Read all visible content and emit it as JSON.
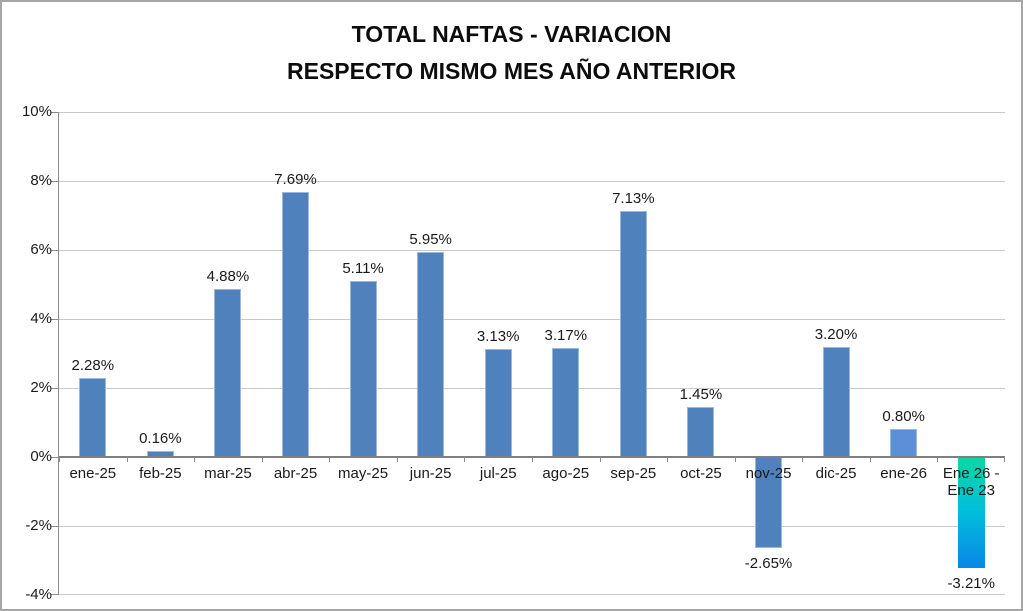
{
  "title": {
    "line1": "TOTAL NAFTAS - VARIACION",
    "line2": "RESPECTO MISMO MES AÑO ANTERIOR"
  },
  "chart_data": {
    "type": "bar",
    "title": "TOTAL NAFTAS - VARIACION RESPECTO MISMO MES AÑO ANTERIOR",
    "categories": [
      "ene-25",
      "feb-25",
      "mar-25",
      "abr-25",
      "may-25",
      "jun-25",
      "jul-25",
      "ago-25",
      "sep-25",
      "oct-25",
      "nov-25",
      "dic-25",
      "ene-26",
      "Ene 26 - Ene 23"
    ],
    "values": [
      2.28,
      0.16,
      4.88,
      7.69,
      5.11,
      5.95,
      3.13,
      3.17,
      7.13,
      1.45,
      -2.65,
      3.2,
      0.8,
      -3.21
    ],
    "data_labels": [
      "2.28%",
      "0.16%",
      "4.88%",
      "7.69%",
      "5.11%",
      "5.95%",
      "3.13%",
      "3.17%",
      "7.13%",
      "1.45%",
      "-2.65%",
      "3.20%",
      "0.80%",
      "-3.21%"
    ],
    "bar_styles": [
      "bar",
      "bar",
      "bar",
      "bar",
      "bar",
      "bar",
      "bar",
      "bar",
      "bar",
      "bar",
      "bar",
      "bar",
      "bar_light",
      "gradient"
    ],
    "ylim": [
      -4,
      10
    ],
    "ytick_values": [
      10,
      8,
      6,
      4,
      2,
      0,
      -2,
      -4
    ],
    "ytick_labels": [
      "10%",
      "8%",
      "6%",
      "4%",
      "2%",
      "0%",
      "-2%",
      "-4%"
    ],
    "grid": true,
    "legend": "none",
    "xlabel": "",
    "ylabel": "",
    "colors": {
      "bar": "#4F81BD",
      "bar_border": "#9CB8DA",
      "bar_light": "#5B8FD8",
      "gradient_top": "#0BD8A4",
      "gradient_mid": "#00BEDB",
      "gradient_bottom": "#0A86E6",
      "gridline": "#C9C9C9",
      "axis": "#8C8C8C",
      "zero_line": "#7F7F7F",
      "text": "#1A1A1A"
    }
  }
}
